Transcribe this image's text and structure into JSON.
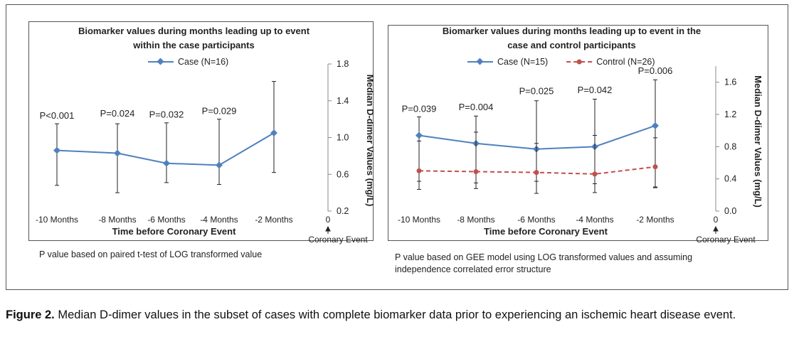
{
  "figure": {
    "caption_label": "Figure 2.",
    "caption_text": " Median D-dimer values in the subset of cases with complete biomarker data prior to experiencing an ischemic heart disease event."
  },
  "notes": {
    "left": "P value based on paired t-test of LOG transformed value",
    "right": "P value based on GEE model using LOG transformed values and assuming independence correlated error structure"
  },
  "colors": {
    "case": "#4f81bd",
    "control": "#c0504d",
    "frame": "#555555"
  },
  "chart_data": [
    {
      "type": "line",
      "title_lines": [
        "Biomarker values during months leading up to event",
        "within the case participants"
      ],
      "categories": [
        "-10 Months",
        "-8 Months",
        "-6 Months",
        "-4 Months",
        "-2 Months"
      ],
      "x_end_label": "0",
      "x_end_sublabel": "Coronary Event",
      "xlabel": "Time before Coronary Event",
      "ylabel": "Median D-dimer Values (mg/L)",
      "ylim": [
        0.2,
        1.8
      ],
      "yticks": [
        "0.2",
        "0.6",
        "1.0",
        "1.4",
        "1.8"
      ],
      "ytick_values": [
        0.2,
        0.6,
        1.0,
        1.4,
        1.8
      ],
      "series": [
        {
          "name": "Case (N=16)",
          "values": [
            0.86,
            0.83,
            0.72,
            0.7,
            1.05
          ],
          "err_low": [
            0.48,
            0.4,
            0.51,
            0.49,
            0.62
          ],
          "err_high": [
            1.15,
            1.15,
            1.16,
            1.2,
            1.61
          ],
          "style": "solid"
        }
      ],
      "annotations": [
        "P<0.001",
        "P=0.024",
        "P=0.032",
        "P=0.029"
      ],
      "annotation_values": [
        1.16,
        1.18,
        1.17,
        1.21
      ]
    },
    {
      "type": "line",
      "title_lines": [
        "Biomarker values during months leading up to event in the",
        "case and control participants"
      ],
      "categories": [
        "-10 Months",
        "-8 Months",
        "-6 Months",
        "-4 Months",
        "-2 Months"
      ],
      "x_end_label": "0",
      "x_end_sublabel": "Coronary Event",
      "xlabel": "Time before Coronary Event",
      "ylabel": "Median D-dimer Values (mg/L)",
      "ylim": [
        0.0,
        1.8
      ],
      "yticks": [
        "0.0",
        "0.4",
        "0.8",
        "1.2",
        "1.6"
      ],
      "ytick_values": [
        0.0,
        0.4,
        0.8,
        1.2,
        1.6
      ],
      "series": [
        {
          "name": "Case (N=15)",
          "values": [
            0.94,
            0.84,
            0.77,
            0.8,
            1.06
          ],
          "err_low": [
            0.27,
            0.28,
            0.22,
            0.23,
            0.29
          ],
          "err_high": [
            1.17,
            1.18,
            1.37,
            1.39,
            1.63
          ],
          "style": "solid"
        },
        {
          "name": "Control (N=26)",
          "values": [
            0.5,
            0.49,
            0.48,
            0.46,
            0.55
          ],
          "err_low": [
            0.37,
            0.35,
            0.37,
            0.34,
            0.3
          ],
          "err_high": [
            0.87,
            0.98,
            0.84,
            0.94,
            0.91
          ],
          "style": "dashed"
        }
      ],
      "annotations": [
        "P=0.039",
        "P=0.004",
        "P=0.025",
        "P=0.042",
        "P=0.006"
      ],
      "annotation_values": [
        1.18,
        1.2,
        1.4,
        1.41,
        1.65
      ]
    }
  ]
}
